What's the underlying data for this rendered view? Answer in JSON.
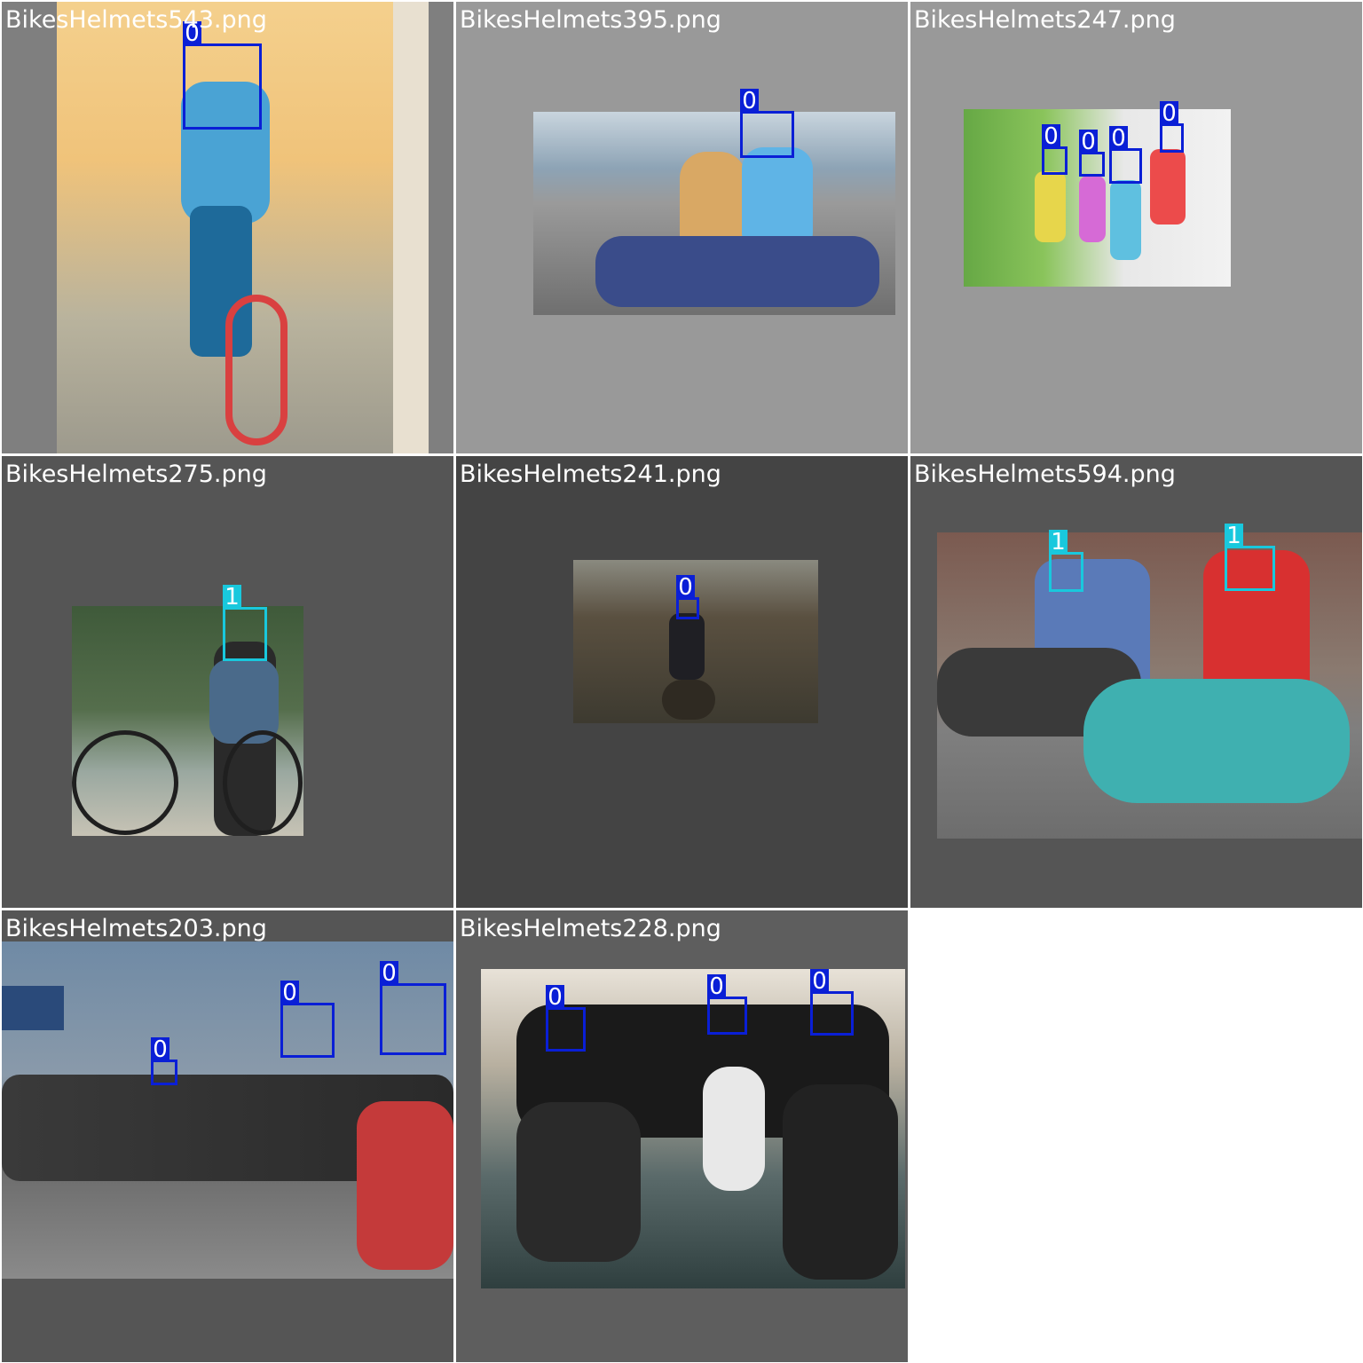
{
  "grid": {
    "background": "#ffffff",
    "divider_color": "#ffffff"
  },
  "colors": {
    "class_0": "#0a1fd6",
    "class_1": "#19c8dd",
    "label_text": "#ffffff"
  },
  "tiles": [
    {
      "filename": "BikesHelmets543.png",
      "background": "#7f7f7f",
      "image_palette": [
        "#f0c37a",
        "#4aa3d4",
        "#1e6a9a",
        "#d94040",
        "#e8e0d0"
      ],
      "boxes": [
        {
          "class_label": "0"
        }
      ]
    },
    {
      "filename": "BikesHelmets395.png",
      "background": "#999999",
      "image_palette": [
        "#8da3b5",
        "#6d8c5a",
        "#d9a864",
        "#3a4c8a",
        "#e46a86"
      ],
      "boxes": [
        {
          "class_label": "0"
        }
      ]
    },
    {
      "filename": "BikesHelmets247.png",
      "background": "#999999",
      "image_palette": [
        "#66a845",
        "#e7d64b",
        "#ec4b4b",
        "#5fc0e0",
        "#f2f2f2"
      ],
      "boxes": [
        {
          "class_label": "0"
        },
        {
          "class_label": "0"
        },
        {
          "class_label": "0"
        },
        {
          "class_label": "0"
        }
      ]
    },
    {
      "filename": "BikesHelmets275.png",
      "background": "#555555",
      "image_palette": [
        "#3f5a3a",
        "#4a6a8a",
        "#c7c3b5",
        "#2a2a2a",
        "#9aa8a0"
      ],
      "boxes": [
        {
          "class_label": "1"
        }
      ]
    },
    {
      "filename": "BikesHelmets241.png",
      "background": "#444444",
      "image_palette": [
        "#5a5040",
        "#8a8a80",
        "#2f2a22",
        "#c8b896",
        "#3d3a30"
      ],
      "boxes": [
        {
          "class_label": "0"
        }
      ]
    },
    {
      "filename": "BikesHelmets594.png",
      "background": "#555555",
      "image_palette": [
        "#7b5a50",
        "#3fb0b0",
        "#d83030",
        "#5a7ab8",
        "#7f7f7f"
      ],
      "boxes": [
        {
          "class_label": "1"
        },
        {
          "class_label": "1"
        }
      ]
    },
    {
      "filename": "BikesHelmets203.png",
      "background": "#555555",
      "image_palette": [
        "#6f8aa5",
        "#3a3a3a",
        "#c43a3a",
        "#666666",
        "#8a8a8a"
      ],
      "boxes": [
        {
          "class_label": "0"
        },
        {
          "class_label": "0"
        },
        {
          "class_label": "0"
        }
      ]
    },
    {
      "filename": "BikesHelmets228.png",
      "background": "#5e5e5e",
      "image_palette": [
        "#e8e2d8",
        "#2f3f3f",
        "#5a6a6a",
        "#1a1a1a",
        "#b8b0a0"
      ],
      "boxes": [
        {
          "class_label": "0"
        },
        {
          "class_label": "0"
        },
        {
          "class_label": "0"
        }
      ]
    }
  ]
}
